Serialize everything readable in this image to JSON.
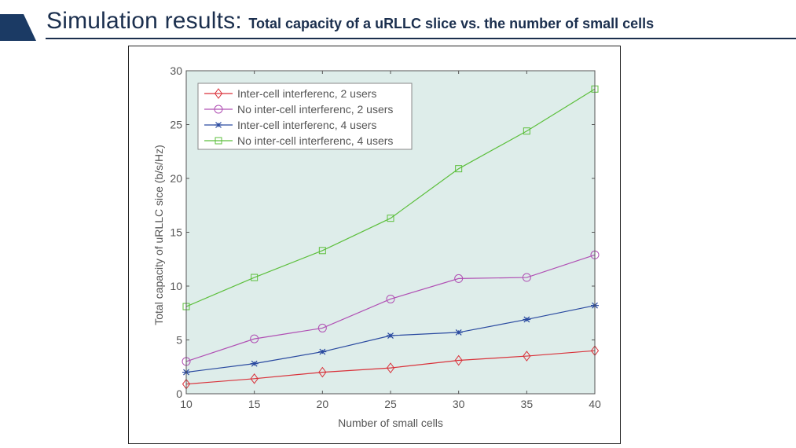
{
  "header": {
    "title_main": "Simulation results:",
    "title_sub": "Total capacity of a uRLLC slice vs. the number of small cells"
  },
  "colors": {
    "brand": "#1b2f4e",
    "plot_background": "#deedea",
    "series_red": "#d9323a",
    "series_magenta": "#b050b4",
    "series_blue": "#2a4aa0",
    "series_green": "#5cbf3c"
  },
  "chart_data": {
    "type": "line",
    "title": "",
    "xlabel": "Number of small cells",
    "ylabel": "Total capacity of uRLLC sice (b/s/Hz)",
    "x": [
      10,
      15,
      20,
      25,
      30,
      35,
      40
    ],
    "xlim": [
      10,
      40
    ],
    "ylim": [
      0,
      30
    ],
    "xticks": [
      10,
      15,
      20,
      25,
      30,
      35,
      40
    ],
    "yticks": [
      0,
      5,
      10,
      15,
      20,
      25,
      30
    ],
    "grid": false,
    "legend_position": "top-left",
    "series": [
      {
        "name": "Inter-cell interferenc, 2 users",
        "marker": "diamond",
        "color": "#d9323a",
        "values": [
          0.9,
          1.4,
          2.0,
          2.4,
          3.1,
          3.5,
          4.0
        ]
      },
      {
        "name": "No inter-cell interferenc, 2 users",
        "marker": "circle",
        "color": "#b050b4",
        "values": [
          3.0,
          5.1,
          6.1,
          8.8,
          10.7,
          10.8,
          12.9
        ]
      },
      {
        "name": "Inter-cell interferenc, 4 users",
        "marker": "asterisk",
        "color": "#2a4aa0",
        "values": [
          2.0,
          2.8,
          3.9,
          5.4,
          5.7,
          6.9,
          8.2
        ]
      },
      {
        "name": "No inter-cell interferenc, 4 users",
        "marker": "square",
        "color": "#5cbf3c",
        "values": [
          8.1,
          10.8,
          13.3,
          16.3,
          20.9,
          24.4,
          28.3
        ]
      }
    ]
  }
}
